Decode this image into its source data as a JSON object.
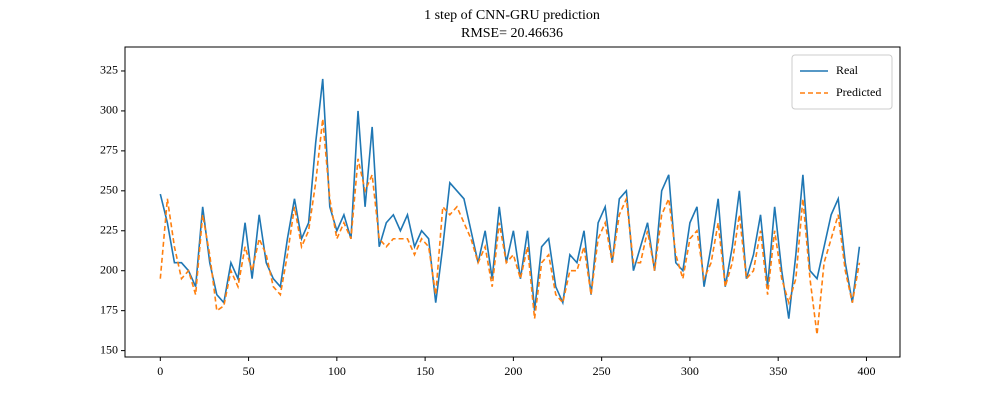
{
  "chart_data": {
    "type": "line",
    "title": "1 step of CNN-GRU prediction",
    "subtitle": "RMSE= 20.46636",
    "x": [
      0,
      4,
      8,
      12,
      16,
      20,
      24,
      28,
      32,
      36,
      40,
      44,
      48,
      52,
      56,
      60,
      64,
      68,
      72,
      76,
      80,
      84,
      88,
      92,
      96,
      100,
      104,
      108,
      112,
      116,
      120,
      124,
      128,
      132,
      136,
      140,
      144,
      148,
      152,
      156,
      160,
      164,
      168,
      172,
      176,
      180,
      184,
      188,
      192,
      196,
      200,
      204,
      208,
      212,
      216,
      220,
      224,
      228,
      232,
      236,
      240,
      244,
      248,
      252,
      256,
      260,
      264,
      268,
      272,
      276,
      280,
      284,
      288,
      292,
      296,
      300,
      304,
      308,
      312,
      316,
      320,
      324,
      328,
      332,
      336,
      340,
      344,
      348,
      352,
      356,
      360,
      364,
      368,
      372,
      376,
      380,
      384,
      388,
      392,
      396
    ],
    "series": [
      {
        "name": "Real",
        "color": "#1f77b4",
        "dash": false,
        "values": [
          248,
          230,
          205,
          205,
          200,
          190,
          240,
          205,
          185,
          180,
          205,
          195,
          230,
          195,
          235,
          205,
          195,
          190,
          220,
          245,
          220,
          230,
          280,
          320,
          240,
          225,
          235,
          220,
          300,
          240,
          290,
          215,
          230,
          235,
          225,
          235,
          215,
          225,
          220,
          180,
          215,
          255,
          250,
          245,
          225,
          205,
          225,
          195,
          240,
          205,
          225,
          195,
          225,
          175,
          215,
          220,
          190,
          180,
          210,
          205,
          225,
          185,
          230,
          240,
          205,
          245,
          250,
          200,
          215,
          230,
          200,
          250,
          260,
          205,
          200,
          230,
          240,
          190,
          215,
          245,
          190,
          215,
          250,
          195,
          210,
          235,
          190,
          240,
          200,
          170,
          210,
          260,
          200,
          195,
          215,
          235,
          245,
          205,
          180,
          215
        ]
      },
      {
        "name": "Predicted",
        "color": "#ff7f0e",
        "dash": true,
        "values": [
          195,
          245,
          215,
          195,
          200,
          185,
          235,
          210,
          175,
          178,
          200,
          190,
          215,
          200,
          220,
          210,
          190,
          185,
          210,
          240,
          215,
          225,
          255,
          295,
          245,
          220,
          230,
          220,
          270,
          250,
          260,
          220,
          215,
          220,
          220,
          220,
          210,
          220,
          215,
          185,
          240,
          235,
          240,
          230,
          220,
          205,
          215,
          190,
          230,
          205,
          210,
          195,
          215,
          170,
          205,
          210,
          185,
          180,
          200,
          200,
          215,
          185,
          220,
          230,
          205,
          235,
          245,
          205,
          205,
          225,
          200,
          235,
          245,
          210,
          195,
          220,
          225,
          195,
          205,
          230,
          190,
          205,
          235,
          195,
          200,
          225,
          185,
          225,
          195,
          180,
          195,
          245,
          195,
          160,
          205,
          220,
          235,
          200,
          180,
          205
        ]
      }
    ],
    "xlim": [
      -20,
      419
    ],
    "xticks": [
      0,
      50,
      100,
      150,
      200,
      250,
      300,
      350,
      400
    ],
    "ylim": [
      146,
      340
    ],
    "yticks": [
      150,
      175,
      200,
      225,
      250,
      275,
      300,
      325
    ],
    "legend": "upper right",
    "grid": false
  }
}
